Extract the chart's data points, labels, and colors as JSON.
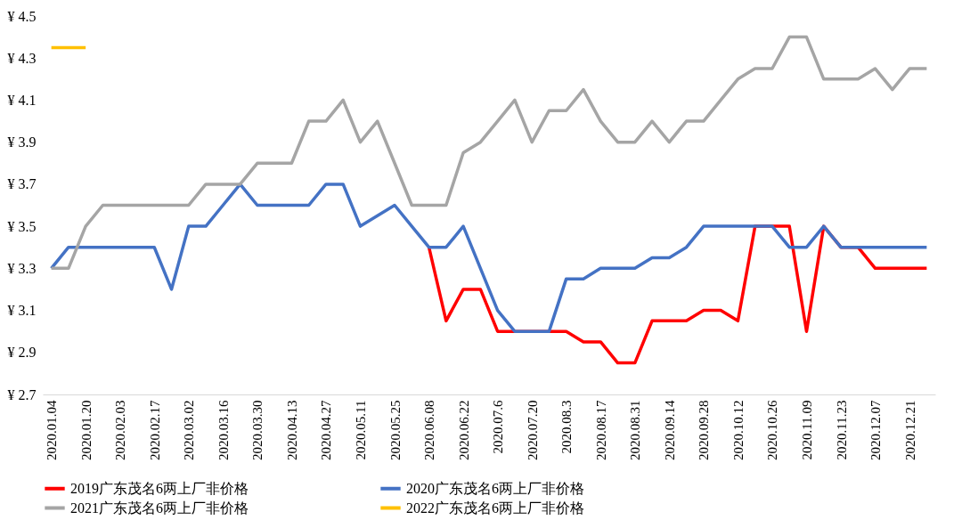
{
  "chart_data": {
    "type": "line",
    "categories": [
      "2020.01.04",
      null,
      "2020.01.20",
      null,
      "2020.02.03",
      null,
      "2020.02.17",
      null,
      "2020.03.02",
      null,
      "2020.03.16",
      null,
      "2020.03.30",
      null,
      "2020.04.13",
      null,
      "2020.04.27",
      null,
      "2020.05.11",
      null,
      "2020.05.25",
      null,
      "2020.06.08",
      null,
      "2020.06.22",
      null,
      "2020.07.6",
      null,
      "2020.07.20",
      null,
      "2020.08.3",
      null,
      "2020.08.17",
      null,
      "2020.08.31",
      null,
      "2020.09.14",
      null,
      "2020.09.28",
      null,
      "2020.10.12",
      null,
      "2020.10.26",
      null,
      "2020.11.09",
      null,
      "2020.11.23",
      null,
      "2020.12.07",
      null,
      "2020.12.21",
      null
    ],
    "series": [
      {
        "name": "2019广东茂名6两上厂非价格",
        "color": "#ff0000",
        "values": [
          null,
          null,
          null,
          null,
          null,
          null,
          null,
          null,
          null,
          null,
          null,
          null,
          null,
          null,
          null,
          null,
          null,
          null,
          null,
          null,
          null,
          null,
          3.4,
          3.05,
          3.2,
          3.2,
          3.0,
          3.0,
          3.0,
          3.0,
          3.0,
          2.95,
          2.95,
          2.85,
          2.85,
          3.05,
          3.05,
          3.05,
          3.1,
          3.1,
          3.05,
          3.5,
          3.5,
          3.5,
          3.0,
          3.5,
          3.4,
          3.4,
          3.3,
          3.3,
          3.3,
          3.3
        ]
      },
      {
        "name": "2020广东茂名6两上厂非价格",
        "color": "#4472c4",
        "values": [
          3.3,
          3.4,
          3.4,
          3.4,
          3.4,
          3.4,
          3.4,
          3.2,
          3.5,
          3.5,
          3.6,
          3.7,
          3.6,
          3.6,
          3.6,
          3.6,
          3.7,
          3.7,
          3.5,
          3.55,
          3.6,
          3.5,
          3.4,
          3.4,
          3.5,
          3.3,
          3.1,
          3.0,
          3.0,
          3.0,
          3.25,
          3.25,
          3.3,
          3.3,
          3.3,
          3.35,
          3.35,
          3.4,
          3.5,
          3.5,
          3.5,
          3.5,
          3.5,
          3.4,
          3.4,
          3.5,
          3.4,
          3.4,
          3.4,
          3.4,
          3.4,
          3.4
        ]
      },
      {
        "name": "2021广东茂名6两上厂非价格",
        "color": "#a5a5a5",
        "values": [
          3.3,
          3.3,
          3.5,
          3.6,
          3.6,
          3.6,
          3.6,
          3.6,
          3.6,
          3.7,
          3.7,
          3.7,
          3.8,
          3.8,
          3.8,
          4.0,
          4.0,
          4.1,
          3.9,
          4.0,
          3.8,
          3.6,
          3.6,
          3.6,
          3.85,
          3.9,
          4.0,
          4.1,
          3.9,
          4.05,
          4.05,
          4.15,
          4.0,
          3.9,
          3.9,
          4.0,
          3.9,
          4.0,
          4.0,
          4.1,
          4.2,
          4.25,
          4.25,
          4.4,
          4.4,
          4.2,
          4.2,
          4.2,
          4.25,
          4.15,
          4.25,
          4.25
        ]
      },
      {
        "name": "2022广东茂名6两上厂非价格",
        "color": "#ffc000",
        "values": [
          4.35,
          4.35,
          4.35,
          null,
          null,
          null,
          null,
          null,
          null,
          null,
          null,
          null,
          null,
          null,
          null,
          null,
          null,
          null,
          null,
          null,
          null,
          null,
          null,
          null,
          null,
          null,
          null,
          null,
          null,
          null,
          null,
          null,
          null,
          null,
          null,
          null,
          null,
          null,
          null,
          null,
          null,
          null,
          null,
          null,
          null,
          null,
          null,
          null,
          null,
          null,
          null,
          null
        ]
      }
    ],
    "ylim": [
      2.7,
      4.5
    ],
    "yticks": [
      {
        "value": 2.7,
        "label": "¥ 2.7"
      },
      {
        "value": 2.9,
        "label": "¥ 2.9"
      },
      {
        "value": 3.1,
        "label": "¥ 3.1"
      },
      {
        "value": 3.3,
        "label": "¥ 3.3"
      },
      {
        "value": 3.5,
        "label": "¥ 3.5"
      },
      {
        "value": 3.7,
        "label": "¥ 3.7"
      },
      {
        "value": 3.9,
        "label": "¥ 3.9"
      },
      {
        "value": 4.1,
        "label": "¥ 4.1"
      },
      {
        "value": 4.3,
        "label": "¥ 4.3"
      },
      {
        "value": 4.5,
        "label": "¥ 4.5"
      }
    ],
    "grid": false,
    "legend": "bottom",
    "line_style": "solid"
  }
}
